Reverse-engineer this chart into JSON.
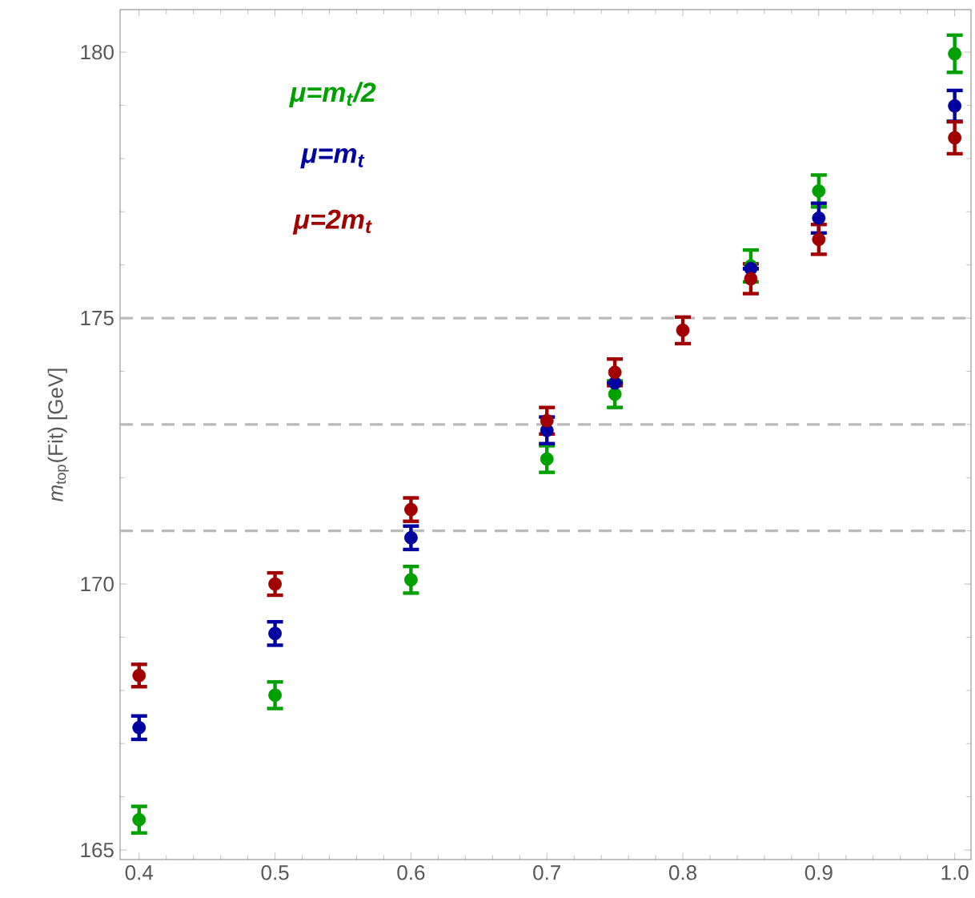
{
  "chart_data": {
    "type": "scatter",
    "ylabel": "*m*$_{top}$(Fit) [GeV]",
    "x": [
      0.4,
      0.5,
      0.6,
      0.7,
      0.75,
      0.8,
      0.85,
      0.9,
      1.0
    ],
    "series": [
      {
        "name": "μ=m$_{t}$/2",
        "color": "#00a000",
        "values": [
          165.57,
          167.91,
          170.08,
          172.35,
          173.57,
          null,
          175.98,
          177.39,
          179.97
        ],
        "errors": [
          0.25,
          0.25,
          0.25,
          0.25,
          0.25,
          null,
          0.3,
          0.3,
          0.35
        ]
      },
      {
        "name": "μ=m$_{t}$",
        "color": "#0000a0",
        "values": [
          167.3,
          169.07,
          170.87,
          172.89,
          173.78,
          null,
          175.93,
          176.88,
          178.99
        ],
        "errors": [
          0.22,
          0.22,
          0.22,
          0.25,
          null,
          null,
          null,
          0.28,
          0.29
        ]
      },
      {
        "name": "μ=2m$_{t}$",
        "color": "#a00000",
        "values": [
          168.28,
          170.0,
          171.4,
          173.07,
          173.98,
          174.77,
          175.74,
          176.48,
          178.39
        ],
        "errors": [
          0.21,
          0.21,
          0.22,
          0.25,
          0.25,
          0.25,
          0.28,
          0.28,
          0.3
        ]
      }
    ],
    "xlim": [
      0.386,
      1.012
    ],
    "ylim": [
      164.82,
      180.8
    ],
    "xticks": [
      0.4,
      0.5,
      0.6,
      0.7,
      0.8,
      0.9,
      {
        "value": 1.0,
        "label": "1.0"
      }
    ],
    "yticks": [
      165,
      170,
      175,
      180
    ],
    "ref_lines": [
      {
        "axis": "y",
        "value": 175,
        "color": "#bbbbbb",
        "line_style": "dashed"
      },
      {
        "axis": "y",
        "value": 173,
        "color": "#bbbbbb",
        "line_style": "dashed"
      },
      {
        "axis": "y",
        "value": 171,
        "color": "#bbbbbb",
        "line_style": "dashed"
      }
    ],
    "grid": false,
    "legend": "top left",
    "marker": "circle"
  }
}
